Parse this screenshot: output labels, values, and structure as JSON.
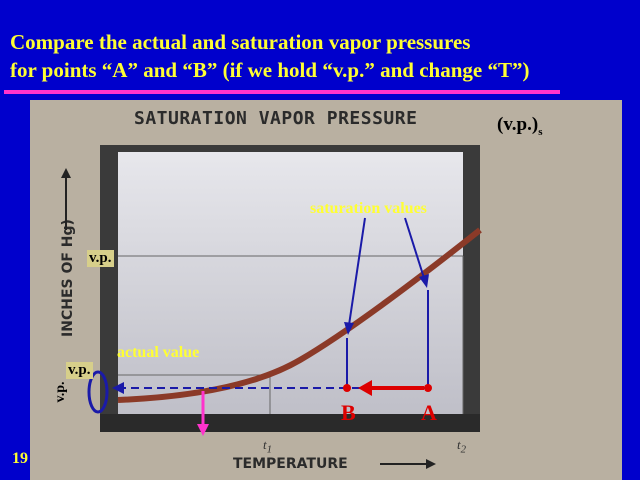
{
  "slide": {
    "title_line1": "Compare the actual and saturation vapor pressures",
    "title_line2": "for points “A” and “B” (if we hold “v.p.” and change “T”)",
    "number": "19"
  },
  "diagram": {
    "chart_title": "SATURATION VAPOR PRESSURE",
    "vps_label": "(v.p.)",
    "vps_sub": "s",
    "y_axis_label": "INCHES OF Hg)",
    "x_axis_label": "TEMPERATURE",
    "t1": "t",
    "t1_sub": "1",
    "t2": "t",
    "t2_sub": "2",
    "vp_top": "v.p.",
    "vp_bottom": "v.p.",
    "vp_side": "v.p.",
    "saturation_label": "saturation values",
    "actual_label": "actual value",
    "point_a": "A",
    "point_b": "B"
  },
  "colors": {
    "background": "#0000cc",
    "title": "#ffff33",
    "rule": "#ff33cc",
    "curve": "#8b3a28",
    "annotation": "#1a1aa8",
    "arrow_red": "#dd0000",
    "arrow_magenta": "#ff33cc"
  }
}
